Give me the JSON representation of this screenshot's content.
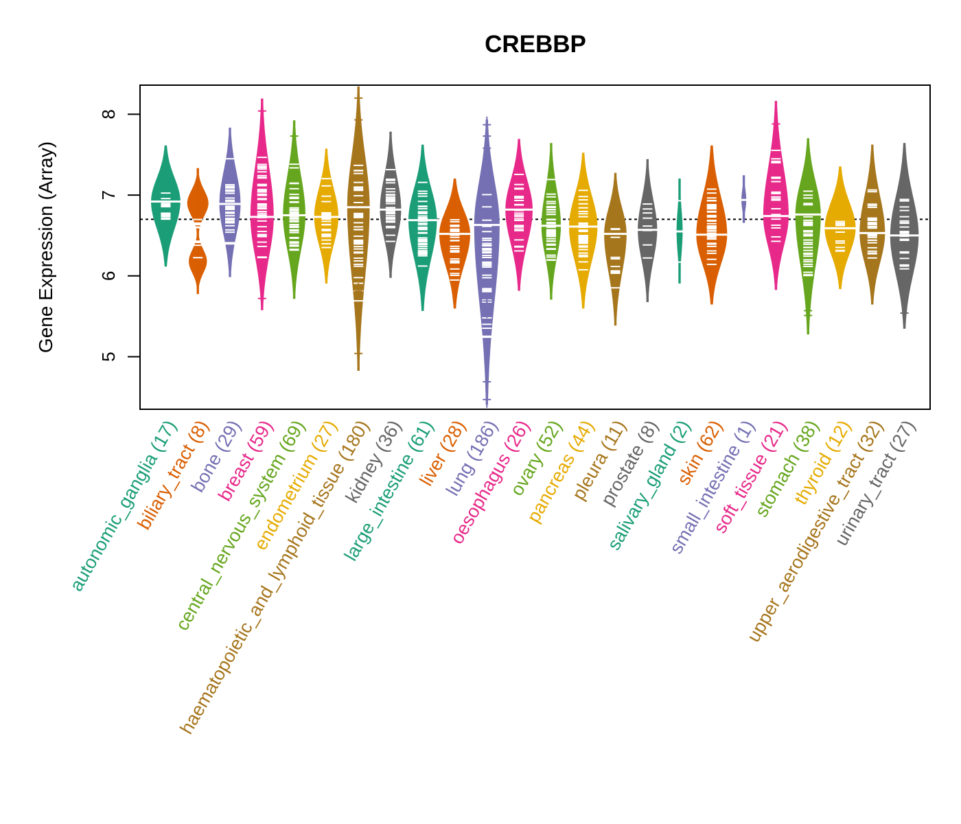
{
  "chart_data": {
    "type": "beanplot",
    "title": "CREBBP",
    "xlabel": "",
    "ylabel": "Gene Expression (Array)",
    "ylim": [
      4.35,
      8.36
    ],
    "yticks": [
      5,
      6,
      7,
      8
    ],
    "grid": false,
    "legend": "none",
    "reference_line": {
      "value": 6.7,
      "style": "dotted",
      "color": "#000000"
    },
    "groups": [
      {
        "name": "autonomic_ganglia",
        "n": 17,
        "label": "autonomic_ganglia (17)",
        "color": "#1B9E77",
        "median": 6.92,
        "min": 6.12,
        "max": 7.61,
        "width": 0.95
      },
      {
        "name": "biliary_tract",
        "n": 8,
        "label": "biliary_tract (8)",
        "color": "#D95F02",
        "median": 6.6,
        "min": 5.78,
        "max": 7.33,
        "width": 0.68,
        "bimodal": true
      },
      {
        "name": "bone",
        "n": 29,
        "label": "bone (29)",
        "color": "#7570B3",
        "median": 6.89,
        "min": 5.99,
        "max": 7.83,
        "width": 0.68
      },
      {
        "name": "breast",
        "n": 59,
        "label": "breast (59)",
        "color": "#E7298A",
        "median": 6.73,
        "min": 5.58,
        "max": 8.19,
        "width": 0.75
      },
      {
        "name": "central_nervous_system",
        "n": 69,
        "label": "central_nervous_system (69)",
        "color": "#66A61E",
        "median": 6.75,
        "min": 5.72,
        "max": 7.92,
        "width": 0.72
      },
      {
        "name": "endometrium",
        "n": 27,
        "label": "endometrium (27)",
        "color": "#E6AB02",
        "median": 6.73,
        "min": 5.91,
        "max": 7.57,
        "width": 0.78
      },
      {
        "name": "haematopoietic_and_lymphoid_tissue",
        "n": 180,
        "label": "haematopoietic_and_lymphoid_tissue (180)",
        "color": "#A6761D",
        "median": 6.85,
        "min": 4.83,
        "max": 8.34,
        "width": 0.72
      },
      {
        "name": "kidney",
        "n": 36,
        "label": "kidney (36)",
        "color": "#666666",
        "median": 6.82,
        "min": 5.98,
        "max": 7.78,
        "width": 0.68
      },
      {
        "name": "large_intestine",
        "n": 61,
        "label": "large_intestine (61)",
        "color": "#1B9E77",
        "median": 6.69,
        "min": 5.57,
        "max": 7.62,
        "width": 0.92
      },
      {
        "name": "liver",
        "n": 28,
        "label": "liver (28)",
        "color": "#D95F02",
        "median": 6.52,
        "min": 5.6,
        "max": 7.2,
        "width": 1.0
      },
      {
        "name": "lung",
        "n": 186,
        "label": "lung (186)",
        "color": "#7570B3",
        "median": 6.63,
        "min": 4.41,
        "max": 7.93,
        "width": 0.82
      },
      {
        "name": "oesophagus",
        "n": 26,
        "label": "oesophagus (26)",
        "color": "#E7298A",
        "median": 6.82,
        "min": 5.82,
        "max": 7.69,
        "width": 0.88
      },
      {
        "name": "ovary",
        "n": 52,
        "label": "ovary (52)",
        "color": "#66A61E",
        "median": 6.62,
        "min": 5.71,
        "max": 7.64,
        "width": 0.62
      },
      {
        "name": "pancreas",
        "n": 44,
        "label": "pancreas (44)",
        "color": "#E6AB02",
        "median": 6.61,
        "min": 5.6,
        "max": 7.52,
        "width": 0.92
      },
      {
        "name": "pleura",
        "n": 11,
        "label": "pleura (11)",
        "color": "#A6761D",
        "median": 6.52,
        "min": 5.39,
        "max": 7.27,
        "width": 0.72
      },
      {
        "name": "prostate",
        "n": 8,
        "label": "prostate (8)",
        "color": "#666666",
        "median": 6.57,
        "min": 5.68,
        "max": 7.44,
        "width": 0.62
      },
      {
        "name": "salivary_gland",
        "n": 2,
        "label": "salivary_gland (2)",
        "color": "#1B9E77",
        "median": 6.55,
        "min": 5.91,
        "max": 7.2,
        "width": 0.18,
        "points": [
          6.93,
          6.17
        ]
      },
      {
        "name": "skin",
        "n": 62,
        "label": "skin (62)",
        "color": "#D95F02",
        "median": 6.51,
        "min": 5.65,
        "max": 7.61,
        "width": 1.0
      },
      {
        "name": "small_intestine",
        "n": 1,
        "label": "small_intestine (1)",
        "color": "#7570B3",
        "median": 6.94,
        "min": 6.66,
        "max": 7.24,
        "width": 0.14,
        "points": [
          6.94
        ]
      },
      {
        "name": "soft_tissue",
        "n": 21,
        "label": "soft_tissue (21)",
        "color": "#E7298A",
        "median": 6.74,
        "min": 5.83,
        "max": 8.16,
        "width": 0.82
      },
      {
        "name": "stomach",
        "n": 38,
        "label": "stomach (38)",
        "color": "#66A61E",
        "median": 6.76,
        "min": 5.28,
        "max": 7.7,
        "width": 0.82
      },
      {
        "name": "thyroid",
        "n": 12,
        "label": "thyroid (12)",
        "color": "#E6AB02",
        "median": 6.59,
        "min": 5.84,
        "max": 7.35,
        "width": 1.0
      },
      {
        "name": "upper_aerodigestive_tract",
        "n": 32,
        "label": "upper_aerodigestive_tract (32)",
        "color": "#A6761D",
        "median": 6.53,
        "min": 5.65,
        "max": 7.62,
        "width": 0.82
      },
      {
        "name": "urinary_tract",
        "n": 27,
        "label": "urinary_tract (27)",
        "color": "#666666",
        "median": 6.5,
        "min": 5.35,
        "max": 7.64,
        "width": 0.92
      }
    ],
    "outliers": {
      "breast": [
        8.04,
        5.72
      ],
      "haematopoietic_and_lymphoid_tissue": [
        8.2,
        7.93,
        5.81,
        5.04
      ],
      "lung": [
        7.87,
        7.73,
        7.58,
        7.43,
        5.69,
        5.58,
        4.69,
        4.47
      ],
      "soft_tissue": [
        7.88
      ],
      "stomach": [
        5.57,
        5.51
      ],
      "urinary_tract": [
        5.54
      ],
      "central_nervous_system": [
        7.73
      ]
    }
  }
}
